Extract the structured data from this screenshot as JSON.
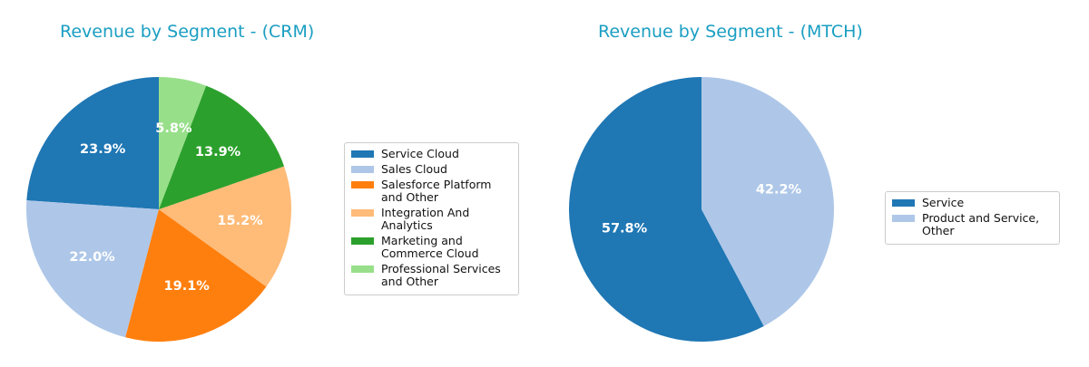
{
  "chart_data": [
    {
      "type": "pie",
      "title": "Revenue by Segment - (CRM)",
      "legend_position": "right",
      "start_angle": "top",
      "direction": "counterclockwise",
      "slices": [
        {
          "label": "Service Cloud",
          "value": 23.9,
          "value_label": "23.9%",
          "color": "#1f77b4"
        },
        {
          "label": "Sales Cloud",
          "value": 22.0,
          "value_label": "22.0%",
          "color": "#aec7e8"
        },
        {
          "label": "Salesforce Platform and Other",
          "value": 19.1,
          "value_label": "19.1%",
          "color": "#ff7f0e"
        },
        {
          "label": "Integration And Analytics",
          "value": 15.2,
          "value_label": "15.2%",
          "color": "#ffbb78"
        },
        {
          "label": "Marketing and Commerce Cloud",
          "value": 13.9,
          "value_label": "13.9%",
          "color": "#2ca02c"
        },
        {
          "label": "Professional Services and Other",
          "value": 5.8,
          "value_label": "5.8%",
          "color": "#98df8a"
        }
      ]
    },
    {
      "type": "pie",
      "title": "Revenue by Segment - (MTCH)",
      "legend_position": "right",
      "start_angle": "top",
      "direction": "counterclockwise",
      "slices": [
        {
          "label": "Service",
          "value": 57.8,
          "value_label": "57.8%",
          "color": "#1f77b4"
        },
        {
          "label": "Product and Service, Other",
          "value": 42.2,
          "value_label": "42.2%",
          "color": "#aec7e8"
        }
      ]
    }
  ]
}
